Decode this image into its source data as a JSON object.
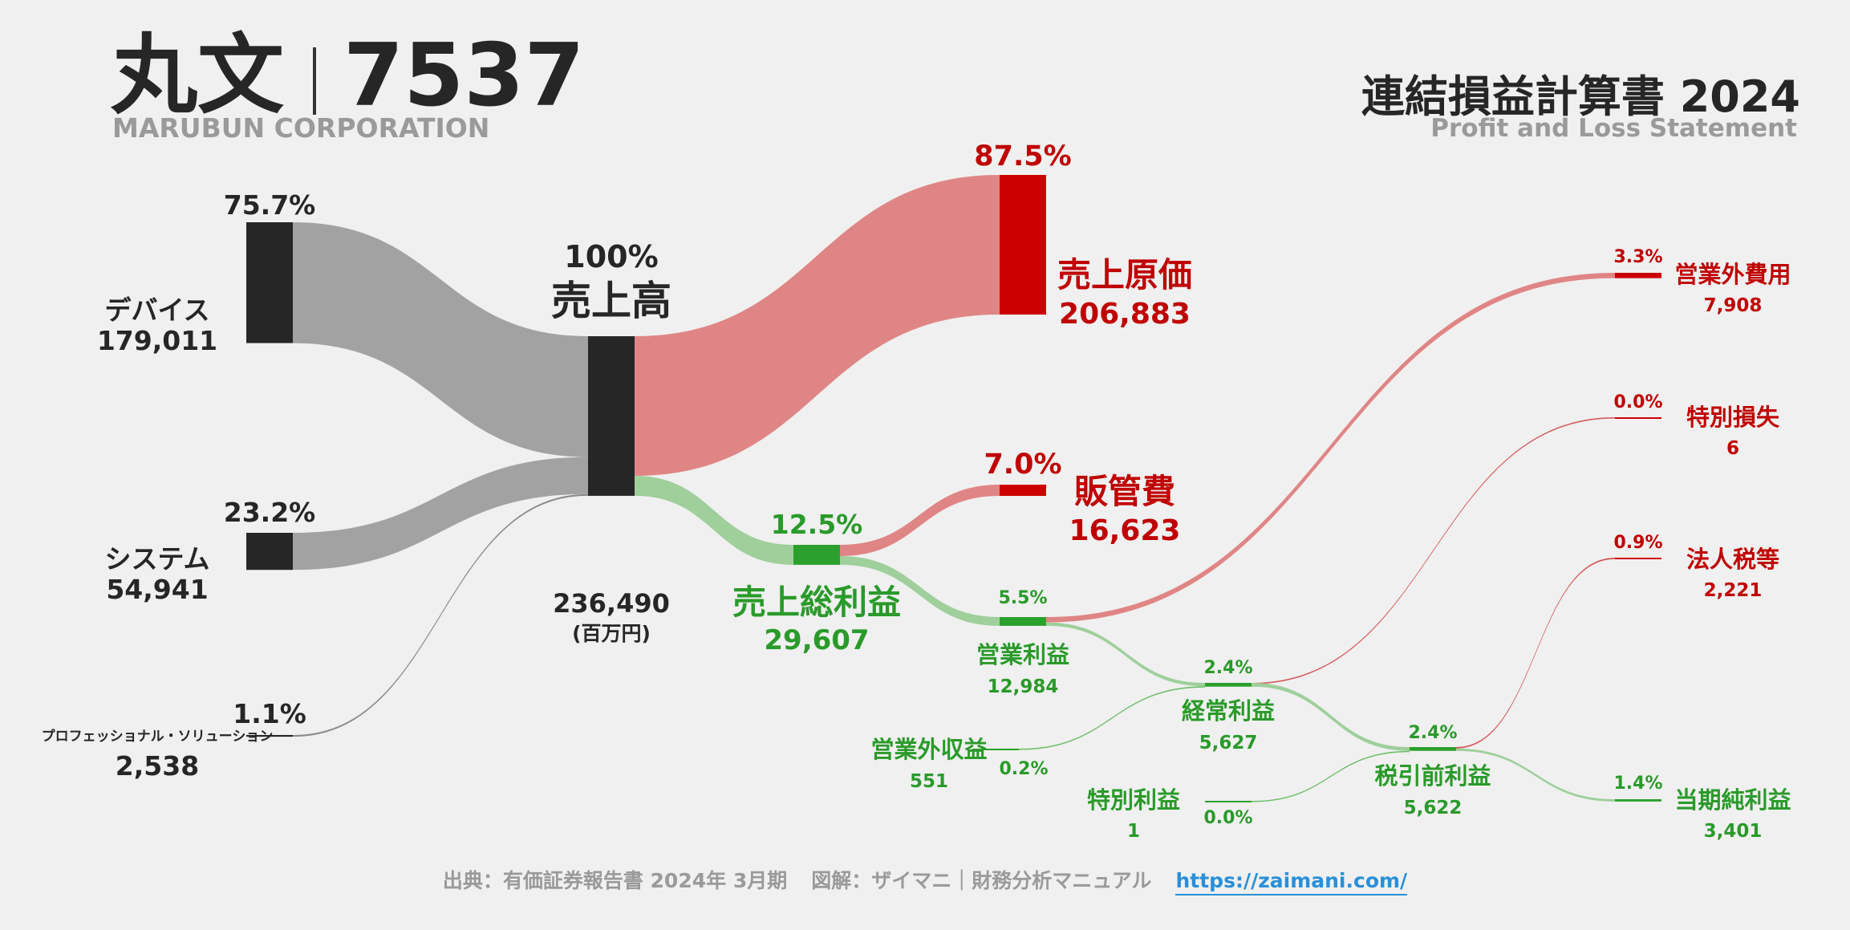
{
  "header": {
    "company": "丸文",
    "ticker": "7537",
    "company_en": "MARUBUN CORPORATION",
    "statement_title": "連結損益計算書 2024",
    "statement_en": "Profit and Loss Statement"
  },
  "footer": {
    "source": "出典：有価証券報告書 2024年 3月期",
    "credit": "図解：ザイマニ｜財務分析マニュアル",
    "url": "https://zaimani.com/"
  },
  "colors": {
    "segment_node": "#262626",
    "segment_flow": "#a2a2a2",
    "cost_node": "#cc0000",
    "cost_flow": "#e08585",
    "profit_node": "#2ca02c",
    "profit_flow": "#9fcf9b",
    "cost_text": "#c00000",
    "profit_text": "#2a9a2a"
  },
  "chart_data": {
    "type": "sankey",
    "unit": "(百万円)",
    "nodes": [
      {
        "id": "devices",
        "label": "デバイス",
        "value": 179011,
        "value_text": "179,011",
        "pct": "75.7%"
      },
      {
        "id": "systems",
        "label": "システム",
        "value": 54941,
        "value_text": "54,941",
        "pct": "23.2%"
      },
      {
        "id": "prof",
        "label": "プロフェッショナル・ソリューション",
        "value": 2538,
        "value_text": "2,538",
        "pct": "1.1%"
      },
      {
        "id": "revenue",
        "label": "売上高",
        "value": 236490,
        "value_text": "236,490",
        "pct": "100%"
      },
      {
        "id": "cogs",
        "label": "売上原価",
        "value": 206883,
        "value_text": "206,883",
        "pct": "87.5%"
      },
      {
        "id": "sga",
        "label": "販管費",
        "value": 16623,
        "value_text": "16,623",
        "pct": "7.0%"
      },
      {
        "id": "gross",
        "label": "売上総利益",
        "value": 29607,
        "value_text": "29,607",
        "pct": "12.5%"
      },
      {
        "id": "op",
        "label": "営業利益",
        "value": 12984,
        "value_text": "12,984",
        "pct": "5.5%"
      },
      {
        "id": "nonop_exp",
        "label": "営業外費用",
        "value": 7908,
        "value_text": "7,908",
        "pct": "3.3%"
      },
      {
        "id": "nonop_inc",
        "label": "営業外収益",
        "value": 551,
        "value_text": "551",
        "pct": "0.2%"
      },
      {
        "id": "ordinary",
        "label": "経常利益",
        "value": 5627,
        "value_text": "5,627",
        "pct": "2.4%"
      },
      {
        "id": "sp_loss",
        "label": "特別損失",
        "value": 6,
        "value_text": "6",
        "pct": "0.0%"
      },
      {
        "id": "sp_gain",
        "label": "特別利益",
        "value": 1,
        "value_text": "1",
        "pct": "0.0%"
      },
      {
        "id": "pretax",
        "label": "税引前利益",
        "value": 5622,
        "value_text": "5,622",
        "pct": "2.4%"
      },
      {
        "id": "tax",
        "label": "法人税等",
        "value": 2221,
        "value_text": "2,221",
        "pct": "0.9%"
      },
      {
        "id": "net",
        "label": "当期純利益",
        "value": 3401,
        "value_text": "3,401",
        "pct": "1.4%"
      }
    ],
    "links": [
      {
        "source": "devices",
        "target": "revenue",
        "value": 179011
      },
      {
        "source": "systems",
        "target": "revenue",
        "value": 54941
      },
      {
        "source": "prof",
        "target": "revenue",
        "value": 2538
      },
      {
        "source": "revenue",
        "target": "cogs",
        "value": 206883
      },
      {
        "source": "revenue",
        "target": "gross",
        "value": 29607
      },
      {
        "source": "gross",
        "target": "sga",
        "value": 16623
      },
      {
        "source": "gross",
        "target": "op",
        "value": 12984
      },
      {
        "source": "op",
        "target": "nonop_exp",
        "value": 7908
      },
      {
        "source": "op",
        "target": "ordinary",
        "value": 5076
      },
      {
        "source": "nonop_inc",
        "target": "ordinary",
        "value": 551
      },
      {
        "source": "ordinary",
        "target": "sp_loss",
        "value": 6
      },
      {
        "source": "ordinary",
        "target": "pretax",
        "value": 5621
      },
      {
        "source": "sp_gain",
        "target": "pretax",
        "value": 1
      },
      {
        "source": "pretax",
        "target": "tax",
        "value": 2221
      },
      {
        "source": "pretax",
        "target": "net",
        "value": 3401
      }
    ]
  }
}
